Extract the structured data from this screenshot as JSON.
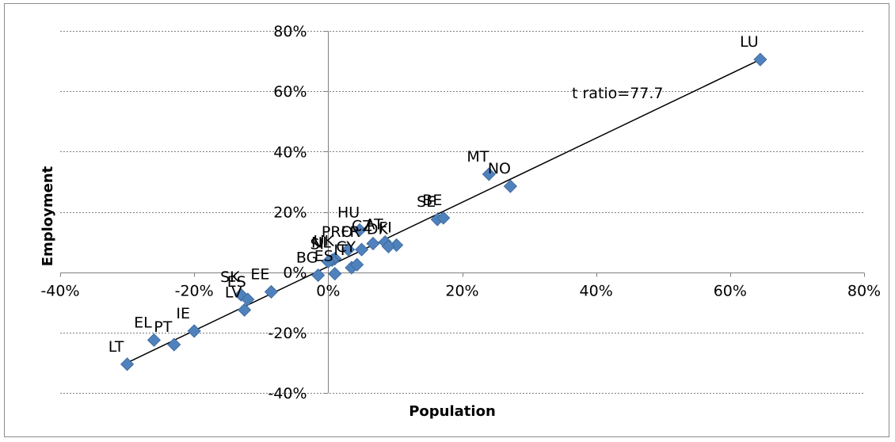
{
  "chart_data": {
    "type": "scatter",
    "title": "",
    "xlabel": "Population",
    "ylabel": "Employment",
    "xlim": [
      -0.4,
      0.8
    ],
    "ylim": [
      -0.4,
      0.8
    ],
    "x_ticks": [
      -0.4,
      -0.2,
      0,
      0.2,
      0.4,
      0.6,
      0.8
    ],
    "y_ticks": [
      -0.4,
      -0.2,
      0,
      0.2,
      0.4,
      0.6,
      0.8
    ],
    "x_tick_labels": [
      "-40%",
      "-20%",
      "0%",
      "20%",
      "40%",
      "60%",
      "80%"
    ],
    "y_tick_labels": [
      "-40%",
      "-20%",
      "0%",
      "20%",
      "40%",
      "60%",
      "80%"
    ],
    "grid": "horizontal dotted",
    "marker_color": "#4f81bd",
    "trendline": {
      "x": [
        -0.3,
        0.645
      ],
      "y": [
        -0.3,
        0.705
      ],
      "color": "#000000"
    },
    "annotation": "t ratio=77.7",
    "points": [
      {
        "label": "LU",
        "x": 0.645,
        "y": 0.705
      },
      {
        "label": "MT",
        "x": 0.24,
        "y": 0.325
      },
      {
        "label": "NO",
        "x": 0.272,
        "y": 0.285
      },
      {
        "label": "SE",
        "x": 0.163,
        "y": 0.175
      },
      {
        "label": "BE",
        "x": 0.172,
        "y": 0.18
      },
      {
        "label": "HU",
        "x": 0.047,
        "y": 0.14
      },
      {
        "label": "CZ",
        "x": 0.067,
        "y": 0.095
      },
      {
        "label": "AT",
        "x": 0.085,
        "y": 0.1
      },
      {
        "label": "FI",
        "x": 0.102,
        "y": 0.09
      },
      {
        "label": "PRO",
        "x": 0.03,
        "y": 0.075
      },
      {
        "label": "DK",
        "x": 0.09,
        "y": 0.085
      },
      {
        "label": "UK",
        "x": 0.01,
        "y": 0.045
      },
      {
        "label": "FR",
        "x": 0.05,
        "y": 0.075
      },
      {
        "label": "NL",
        "x": 0.006,
        "y": 0.04
      },
      {
        "label": "SI",
        "x": 0.0,
        "y": 0.035
      },
      {
        "label": "IT",
        "x": 0.035,
        "y": 0.015
      },
      {
        "label": "CY",
        "x": 0.043,
        "y": 0.025
      },
      {
        "label": "ES",
        "x": 0.01,
        "y": -0.005
      },
      {
        "label": "BG",
        "x": -0.015,
        "y": -0.01
      },
      {
        "label": "EE",
        "x": -0.085,
        "y": -0.065
      },
      {
        "label": "SK",
        "x": -0.13,
        "y": -0.075
      },
      {
        "label": "ES",
        "x": -0.12,
        "y": -0.09
      },
      {
        "label": "LV",
        "x": -0.125,
        "y": -0.125
      },
      {
        "label": "IE",
        "x": -0.2,
        "y": -0.195
      },
      {
        "label": "PT",
        "x": -0.23,
        "y": -0.24
      },
      {
        "label": "EL",
        "x": -0.26,
        "y": -0.225
      },
      {
        "label": "LT",
        "x": -0.3,
        "y": -0.305
      }
    ]
  }
}
